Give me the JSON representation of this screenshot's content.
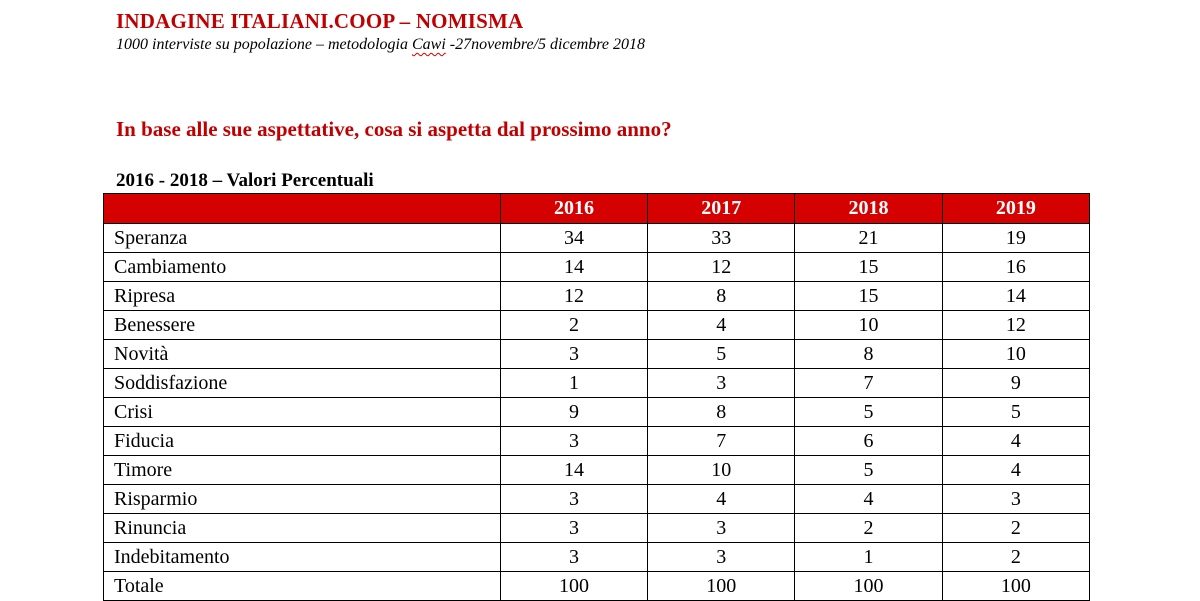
{
  "header": {
    "title": "INDAGINE ITALIANI.COOP – NOMISMA",
    "subtitle_before": "1000 interviste su popolazione – metodologia ",
    "subtitle_flagged": "Cawi",
    "subtitle_after": " -27novembre/5 dicembre 2018"
  },
  "question": "In base alle sue aspettative, cosa si aspetta dal prossimo anno?",
  "table_caption": "2016 - 2018 – Valori Percentuali",
  "table": {
    "columns": [
      "",
      "2016",
      "2017",
      "2018",
      "2019"
    ],
    "rows": [
      [
        "Speranza",
        "34",
        "33",
        "21",
        "19"
      ],
      [
        "Cambiamento",
        "14",
        "12",
        "15",
        "16"
      ],
      [
        "Ripresa",
        "12",
        "8",
        "15",
        "14"
      ],
      [
        "Benessere",
        "2",
        "4",
        "10",
        "12"
      ],
      [
        "Novità",
        "3",
        "5",
        "8",
        "10"
      ],
      [
        "Soddisfazione",
        "1",
        "3",
        "7",
        "9"
      ],
      [
        "Crisi",
        "9",
        "8",
        "5",
        "5"
      ],
      [
        "Fiducia",
        "3",
        "7",
        "6",
        "4"
      ],
      [
        "Timore",
        "14",
        "10",
        "5",
        "4"
      ],
      [
        "Risparmio",
        "3",
        "4",
        "4",
        "3"
      ],
      [
        "Rinuncia",
        "3",
        "3",
        "2",
        "2"
      ],
      [
        "Indebitamento",
        "3",
        "3",
        "1",
        "2"
      ],
      [
        "Totale",
        "100",
        "100",
        "100",
        "100"
      ]
    ]
  },
  "colors": {
    "accent_red": "#c00000",
    "header_fill": "#d50000"
  }
}
